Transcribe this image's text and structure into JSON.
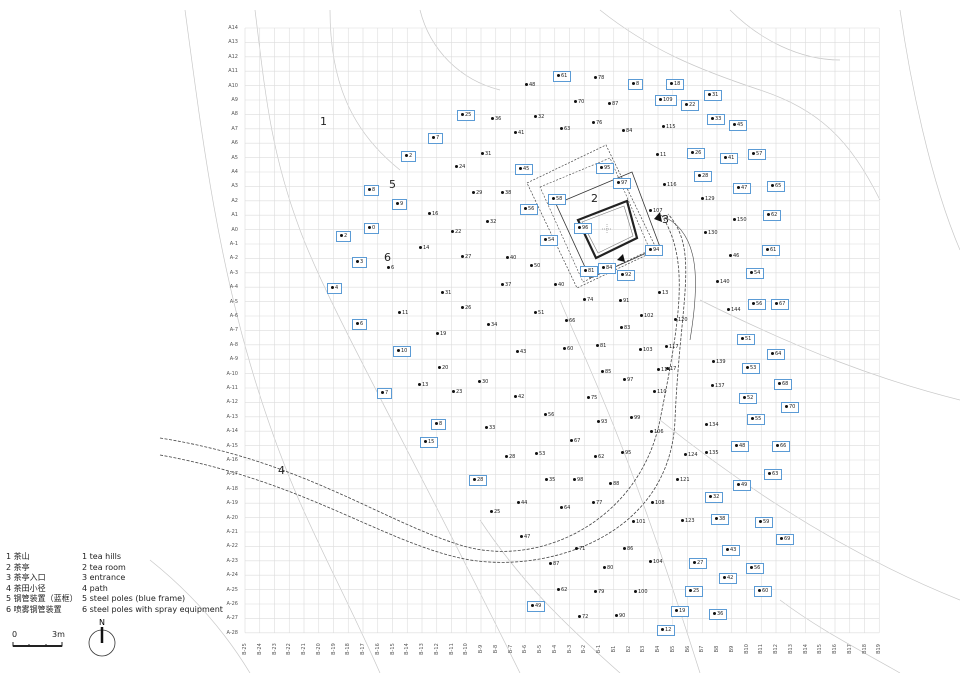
{
  "grid": {
    "rows": [
      "A14",
      "A13",
      "A12",
      "A11",
      "A10",
      "A9",
      "A8",
      "A7",
      "A6",
      "A5",
      "A4",
      "A3",
      "A2",
      "A1",
      "A0",
      "A-1",
      "A-2",
      "A-3",
      "A-4",
      "A-5",
      "A-6",
      "A-7",
      "A-8",
      "A-9",
      "A-10",
      "A-11",
      "A-12",
      "A-13",
      "A-14",
      "A-15",
      "A-16",
      "A-17",
      "A-18",
      "A-19",
      "A-20",
      "A-21",
      "A-22",
      "A-23",
      "A-24",
      "A-25",
      "A-26",
      "A-27",
      "A-28"
    ],
    "cols": [
      "B-25",
      "B-24",
      "B-23",
      "B-22",
      "B-21",
      "B-20",
      "B-19",
      "B-18",
      "B-17",
      "B-16",
      "B-15",
      "B-14",
      "B-13",
      "B-12",
      "B-11",
      "B-10",
      "B-9",
      "B-8",
      "B-7",
      "B-6",
      "B-5",
      "B-4",
      "B-3",
      "B-2",
      "B-1",
      "B1",
      "B2",
      "B3",
      "B4",
      "B5",
      "B6",
      "B7",
      "B8",
      "B9",
      "B10",
      "B11",
      "B12",
      "B13",
      "B14",
      "B15",
      "B16",
      "B17",
      "B18",
      "B19"
    ]
  },
  "zones": [
    "1",
    "2",
    "3",
    "4",
    "5",
    "6"
  ],
  "points": {
    "framed": [
      "61",
      "8",
      "18",
      "31",
      "109",
      "22",
      "33",
      "45",
      "25",
      "7",
      "26",
      "41",
      "57",
      "2",
      "45",
      "95",
      "28",
      "47",
      "65",
      "8",
      "9",
      "58",
      "97",
      "56",
      "62",
      "0",
      "2",
      "96",
      "54",
      "94",
      "61",
      "3",
      "81",
      "84",
      "92",
      "54",
      "4",
      "56",
      "67",
      "6",
      "51",
      "10",
      "64",
      "53",
      "68",
      "7",
      "52",
      "70",
      "8",
      "55",
      "15",
      "48",
      "66",
      "63",
      "28",
      "49",
      "32",
      "38",
      "59",
      "69",
      "43",
      "27",
      "56",
      "42",
      "60",
      "25",
      "49",
      "19",
      "36",
      "12"
    ],
    "plain": [
      "48",
      "78",
      "70",
      "87",
      "36",
      "32",
      "63",
      "76",
      "41",
      "84",
      "115",
      "31",
      "11",
      "24",
      "29",
      "38",
      "116",
      "129",
      "16",
      "32",
      "107",
      "150",
      "22",
      "130",
      "14",
      "27",
      "40",
      "50",
      "46",
      "6",
      "140",
      "37",
      "40",
      "13",
      "31",
      "26",
      "74",
      "91",
      "144",
      "11",
      "34",
      "51",
      "66",
      "102",
      "120",
      "83",
      "19",
      "43",
      "60",
      "81",
      "103",
      "117",
      "139",
      "20",
      "30",
      "85",
      "17",
      "114",
      "97",
      "13",
      "23",
      "42",
      "75",
      "110",
      "137",
      "56",
      "93",
      "99",
      "134",
      "33",
      "67",
      "106",
      "135",
      "28",
      "53",
      "62",
      "95",
      "124",
      "98",
      "35",
      "88",
      "121",
      "44",
      "64",
      "77",
      "108",
      "25",
      "101",
      "123",
      "47",
      "71",
      "86",
      "87",
      "104",
      "80",
      "62",
      "79",
      "100",
      "72",
      "90"
    ]
  },
  "legend": [
    {
      "zh": "1  茶山",
      "en": "1 tea hills"
    },
    {
      "zh": "2  茶亭",
      "en": "2 tea room"
    },
    {
      "zh": "3  茶亭入口",
      "en": "3 entrance"
    },
    {
      "zh": "4  茶田小径",
      "en": "4 path"
    },
    {
      "zh": "5  钢管装置（蓝框）",
      "en": "5 steel poles (blue frame)"
    },
    {
      "zh": "6  喷雾钢管装置",
      "en": "6 steel poles with spray equipment"
    }
  ],
  "scale": {
    "start": "0",
    "end": "3m"
  },
  "north": "N",
  "colors": {
    "frame": "#5b9bd5",
    "grid": "#dcdcdc",
    "contour": "#c8c8c8"
  }
}
